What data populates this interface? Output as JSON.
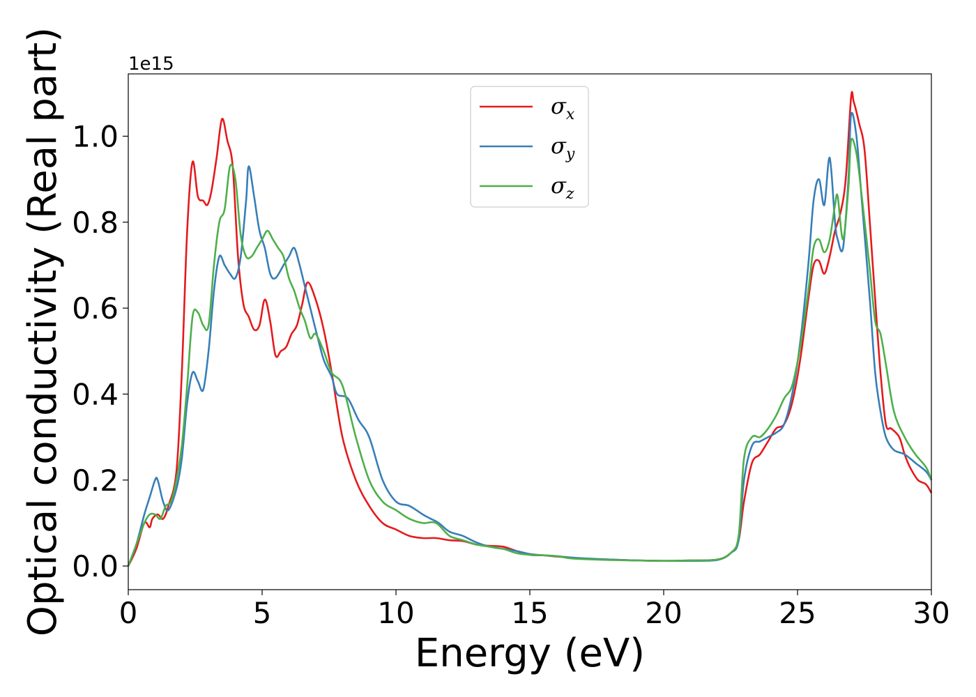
{
  "chart_data": {
    "type": "line",
    "xlabel": "Energy (eV)",
    "ylabel": "Optical conductivity (Real part)",
    "y_offset_label": "1e15",
    "xlim": [
      0,
      30
    ],
    "ylim": [
      -0.055,
      1.145
    ],
    "x_ticks": [
      0,
      5,
      10,
      15,
      20,
      25,
      30
    ],
    "x_tick_labels": [
      "0",
      "5",
      "10",
      "15",
      "20",
      "25",
      "30"
    ],
    "y_ticks": [
      0.0,
      0.2,
      0.4,
      0.6,
      0.8,
      1.0
    ],
    "y_tick_labels": [
      "0.0",
      "0.2",
      "0.4",
      "0.6",
      "0.8",
      "1.0"
    ],
    "grid": false,
    "legend_position": "top-center",
    "series": [
      {
        "name": "σx",
        "symbol": "σ",
        "subscript": "x",
        "color": "#e41a1c",
        "x": [
          0,
          0.3,
          0.6,
          0.8,
          0.9,
          1.1,
          1.3,
          1.5,
          1.8,
          2.0,
          2.2,
          2.4,
          2.6,
          2.8,
          2.95,
          3.1,
          3.3,
          3.5,
          3.7,
          3.9,
          4.1,
          4.3,
          4.5,
          4.7,
          4.9,
          5.1,
          5.3,
          5.5,
          5.7,
          5.9,
          6.1,
          6.3,
          6.5,
          6.7,
          7.0,
          7.3,
          7.6,
          8.0,
          8.5,
          9.0,
          9.5,
          10.0,
          10.5,
          11.0,
          11.5,
          12.0,
          12.5,
          13.0,
          13.5,
          14.0,
          14.5,
          15.0,
          15.5,
          16.0,
          16.5,
          17.0,
          18.0,
          19.0,
          20.0,
          21.0,
          22.0,
          22.5,
          22.8,
          23.0,
          23.3,
          23.6,
          23.9,
          24.2,
          24.5,
          24.8,
          25.1,
          25.4,
          25.6,
          25.8,
          26.0,
          26.2,
          26.4,
          26.6,
          26.8,
          27.0,
          27.1,
          27.3,
          27.5,
          27.7,
          27.9,
          28.1,
          28.3,
          28.5,
          28.8,
          29.0,
          29.2,
          29.5,
          29.8,
          30.0
        ],
        "y": [
          0.0,
          0.04,
          0.1,
          0.09,
          0.11,
          0.12,
          0.11,
          0.14,
          0.22,
          0.45,
          0.78,
          0.94,
          0.86,
          0.85,
          0.84,
          0.87,
          0.95,
          1.04,
          0.99,
          0.93,
          0.72,
          0.61,
          0.58,
          0.55,
          0.56,
          0.62,
          0.57,
          0.49,
          0.5,
          0.51,
          0.54,
          0.56,
          0.61,
          0.66,
          0.62,
          0.55,
          0.45,
          0.3,
          0.2,
          0.14,
          0.1,
          0.085,
          0.07,
          0.065,
          0.065,
          0.06,
          0.058,
          0.05,
          0.047,
          0.045,
          0.035,
          0.026,
          0.025,
          0.022,
          0.02,
          0.017,
          0.015,
          0.013,
          0.012,
          0.013,
          0.015,
          0.03,
          0.06,
          0.15,
          0.24,
          0.26,
          0.29,
          0.32,
          0.33,
          0.38,
          0.48,
          0.62,
          0.7,
          0.71,
          0.68,
          0.72,
          0.78,
          0.82,
          0.9,
          1.09,
          1.08,
          1.03,
          0.97,
          0.8,
          0.62,
          0.45,
          0.33,
          0.32,
          0.3,
          0.26,
          0.23,
          0.2,
          0.19,
          0.17
        ]
      },
      {
        "name": "σy",
        "symbol": "σ",
        "subscript": "y",
        "color": "#377eb8",
        "x": [
          0,
          0.3,
          0.6,
          0.8,
          1.0,
          1.1,
          1.3,
          1.5,
          1.8,
          2.0,
          2.2,
          2.4,
          2.6,
          2.8,
          3.0,
          3.2,
          3.4,
          3.6,
          3.8,
          4.0,
          4.2,
          4.4,
          4.5,
          4.7,
          4.9,
          5.1,
          5.3,
          5.5,
          5.8,
          6.0,
          6.2,
          6.4,
          6.6,
          6.8,
          7.0,
          7.3,
          7.6,
          7.8,
          8.2,
          8.6,
          9.0,
          9.5,
          10.0,
          10.5,
          11.0,
          11.3,
          11.6,
          12.0,
          12.5,
          13.0,
          13.5,
          14.0,
          14.5,
          15.0,
          15.5,
          16.0,
          16.5,
          17.0,
          18.0,
          19.0,
          20.0,
          21.0,
          22.0,
          22.5,
          22.8,
          23.0,
          23.3,
          23.6,
          23.9,
          24.2,
          24.5,
          24.8,
          25.1,
          25.4,
          25.6,
          25.8,
          26.0,
          26.2,
          26.4,
          26.5,
          26.7,
          26.9,
          27.0,
          27.2,
          27.4,
          27.7,
          27.9,
          28.1,
          28.3,
          28.6,
          29.0,
          29.4,
          29.8,
          30.0
        ],
        "y": [
          0.0,
          0.05,
          0.12,
          0.16,
          0.2,
          0.2,
          0.15,
          0.13,
          0.18,
          0.25,
          0.38,
          0.45,
          0.43,
          0.41,
          0.5,
          0.64,
          0.72,
          0.7,
          0.68,
          0.67,
          0.72,
          0.85,
          0.93,
          0.86,
          0.78,
          0.74,
          0.68,
          0.67,
          0.7,
          0.72,
          0.74,
          0.7,
          0.65,
          0.6,
          0.55,
          0.48,
          0.44,
          0.4,
          0.39,
          0.34,
          0.3,
          0.2,
          0.15,
          0.14,
          0.12,
          0.11,
          0.1,
          0.08,
          0.07,
          0.055,
          0.045,
          0.04,
          0.035,
          0.028,
          0.025,
          0.023,
          0.02,
          0.018,
          0.015,
          0.013,
          0.012,
          0.012,
          0.014,
          0.03,
          0.06,
          0.2,
          0.28,
          0.29,
          0.3,
          0.31,
          0.33,
          0.4,
          0.52,
          0.7,
          0.85,
          0.9,
          0.84,
          0.95,
          0.8,
          0.76,
          0.74,
          0.9,
          1.05,
          1.0,
          0.85,
          0.62,
          0.45,
          0.36,
          0.3,
          0.27,
          0.26,
          0.24,
          0.22,
          0.2
        ]
      },
      {
        "name": "σz",
        "symbol": "σ",
        "subscript": "z",
        "color": "#4daf4a",
        "x": [
          0,
          0.3,
          0.6,
          0.8,
          1.0,
          1.2,
          1.4,
          1.6,
          1.8,
          2.0,
          2.2,
          2.4,
          2.6,
          2.8,
          3.0,
          3.2,
          3.4,
          3.6,
          3.8,
          4.0,
          4.2,
          4.4,
          4.6,
          4.8,
          5.0,
          5.2,
          5.4,
          5.6,
          5.8,
          6.0,
          6.2,
          6.4,
          6.6,
          6.8,
          7.0,
          7.3,
          7.6,
          8.0,
          8.5,
          9.0,
          9.5,
          10.0,
          10.5,
          11.0,
          11.5,
          12.0,
          12.5,
          13.0,
          13.5,
          14.0,
          14.5,
          15.0,
          15.5,
          16.0,
          16.5,
          17.0,
          18.0,
          19.0,
          20.0,
          21.0,
          22.0,
          22.5,
          22.8,
          23.0,
          23.3,
          23.6,
          23.9,
          24.2,
          24.5,
          24.8,
          25.1,
          25.4,
          25.6,
          25.8,
          26.0,
          26.2,
          26.4,
          26.5,
          26.7,
          26.9,
          27.0,
          27.2,
          27.4,
          27.7,
          27.9,
          28.1,
          28.3,
          28.6,
          29.0,
          29.4,
          29.8,
          30.0
        ],
        "y": [
          0.0,
          0.05,
          0.1,
          0.12,
          0.12,
          0.11,
          0.14,
          0.15,
          0.2,
          0.28,
          0.42,
          0.58,
          0.59,
          0.56,
          0.56,
          0.7,
          0.8,
          0.83,
          0.93,
          0.9,
          0.77,
          0.72,
          0.72,
          0.74,
          0.76,
          0.78,
          0.76,
          0.74,
          0.72,
          0.67,
          0.64,
          0.6,
          0.57,
          0.53,
          0.54,
          0.5,
          0.45,
          0.42,
          0.3,
          0.2,
          0.15,
          0.13,
          0.11,
          0.1,
          0.1,
          0.07,
          0.06,
          0.05,
          0.045,
          0.04,
          0.03,
          0.026,
          0.025,
          0.023,
          0.018,
          0.016,
          0.014,
          0.013,
          0.012,
          0.013,
          0.015,
          0.03,
          0.07,
          0.25,
          0.3,
          0.3,
          0.32,
          0.35,
          0.39,
          0.42,
          0.51,
          0.64,
          0.74,
          0.76,
          0.73,
          0.76,
          0.84,
          0.86,
          0.76,
          0.88,
          0.99,
          0.96,
          0.86,
          0.69,
          0.57,
          0.54,
          0.47,
          0.36,
          0.3,
          0.26,
          0.23,
          0.2
        ]
      }
    ]
  }
}
